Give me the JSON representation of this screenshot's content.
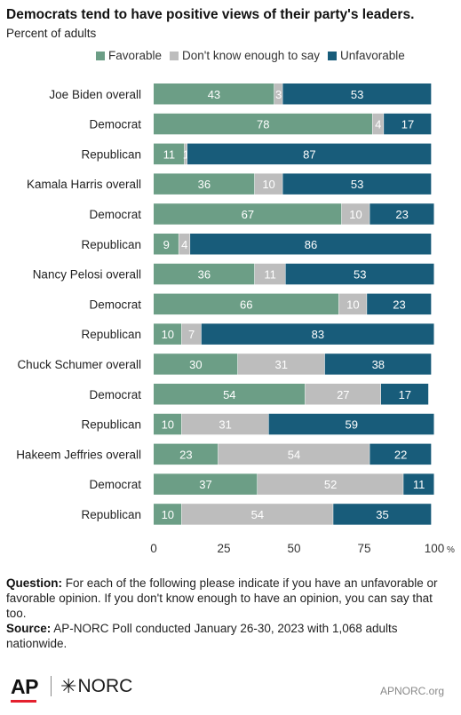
{
  "header": {
    "title": "Democrats tend to have positive views of their party's leaders.",
    "subtitle": "Percent of adults"
  },
  "colors": {
    "favorable": "#6c9e86",
    "dont_know": "#bdbdbd",
    "unfavorable": "#185c7a"
  },
  "chart_data": {
    "type": "bar",
    "orientation": "horizontal",
    "stacked": true,
    "categories": [
      "Joe Biden overall",
      "Democrat",
      "Republican",
      "Kamala Harris overall",
      "Democrat",
      "Republican",
      "Nancy Pelosi overall",
      "Democrat",
      "Republican",
      "Chuck Schumer overall",
      "Democrat",
      "Republican",
      "Hakeem Jeffries overall",
      "Democrat",
      "Republican"
    ],
    "series": [
      {
        "name": "Favorable",
        "values": [
          43,
          78,
          11,
          36,
          67,
          9,
          36,
          66,
          10,
          30,
          54,
          10,
          23,
          37,
          10
        ]
      },
      {
        "name": "Don't know enough to say",
        "values": [
          3,
          4,
          1,
          10,
          10,
          4,
          11,
          10,
          7,
          31,
          27,
          31,
          54,
          52,
          54
        ]
      },
      {
        "name": "Unfavorable",
        "values": [
          53,
          17,
          87,
          53,
          23,
          86,
          53,
          23,
          83,
          38,
          17,
          59,
          22,
          11,
          35
        ]
      }
    ],
    "xlim": [
      0,
      100
    ],
    "xticks": [
      "0",
      "25",
      "50",
      "75",
      "100"
    ],
    "xunit": "%",
    "legend_position": "top",
    "grid": false
  },
  "notes": {
    "question_label": "Question:",
    "question_text": "For each of the following please indicate if you have an unfavorable or favorable opinion. If you don't know enough to have an opinion, you can say that too.",
    "source_label": "Source:",
    "source_text": "AP-NORC Poll conducted January 26-30, 2023 with 1,068 adults nationwide."
  },
  "footer": {
    "ap_logo": "AP",
    "norc_logo": "NORC",
    "url": "APNORC.org"
  }
}
